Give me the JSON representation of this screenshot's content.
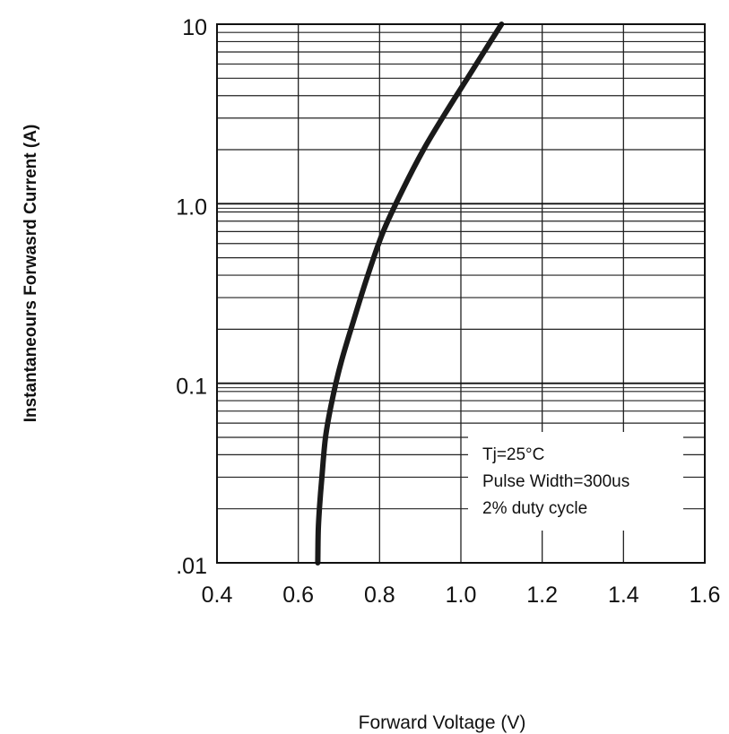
{
  "chart_data": {
    "type": "line",
    "title": "",
    "xlabel": "Forward Voltage (V)",
    "ylabel": "Instantaneours Forwasrd Current (A)",
    "xlim": [
      0.4,
      1.6
    ],
    "ylim": [
      0.01,
      10
    ],
    "y_scale": "log",
    "grid": true,
    "x_ticks": [
      {
        "value": 0.4,
        "label": "0.4"
      },
      {
        "value": 0.6,
        "label": "0.6"
      },
      {
        "value": 0.8,
        "label": "0.8"
      },
      {
        "value": 1.0,
        "label": "1.0"
      },
      {
        "value": 1.2,
        "label": "1.2"
      },
      {
        "value": 1.4,
        "label": "1.4"
      },
      {
        "value": 1.6,
        "label": "1.6"
      }
    ],
    "y_ticks": [
      {
        "value": 0.01,
        "label": ".01"
      },
      {
        "value": 0.1,
        "label": "0.1"
      },
      {
        "value": 1,
        "label": "1.0"
      },
      {
        "value": 10,
        "label": "10"
      }
    ],
    "series": [
      {
        "x": [
          0.648,
          0.649,
          0.652,
          0.658,
          0.667,
          0.683,
          0.705,
          0.735,
          0.771,
          0.809,
          0.857,
          0.908,
          0.962,
          1.016,
          1.06,
          1.1
        ],
        "y": [
          0.01,
          0.015,
          0.02,
          0.03,
          0.05,
          0.08,
          0.13,
          0.22,
          0.4,
          0.7,
          1.2,
          2.0,
          3.2,
          5.0,
          7.2,
          10.0
        ],
        "color": "#1a1a1a"
      }
    ],
    "annotation": {
      "lines": [
        "Tj=25°C",
        "Pulse Width=300us",
        "2% duty cycle"
      ],
      "placement": "bottom-right"
    }
  }
}
